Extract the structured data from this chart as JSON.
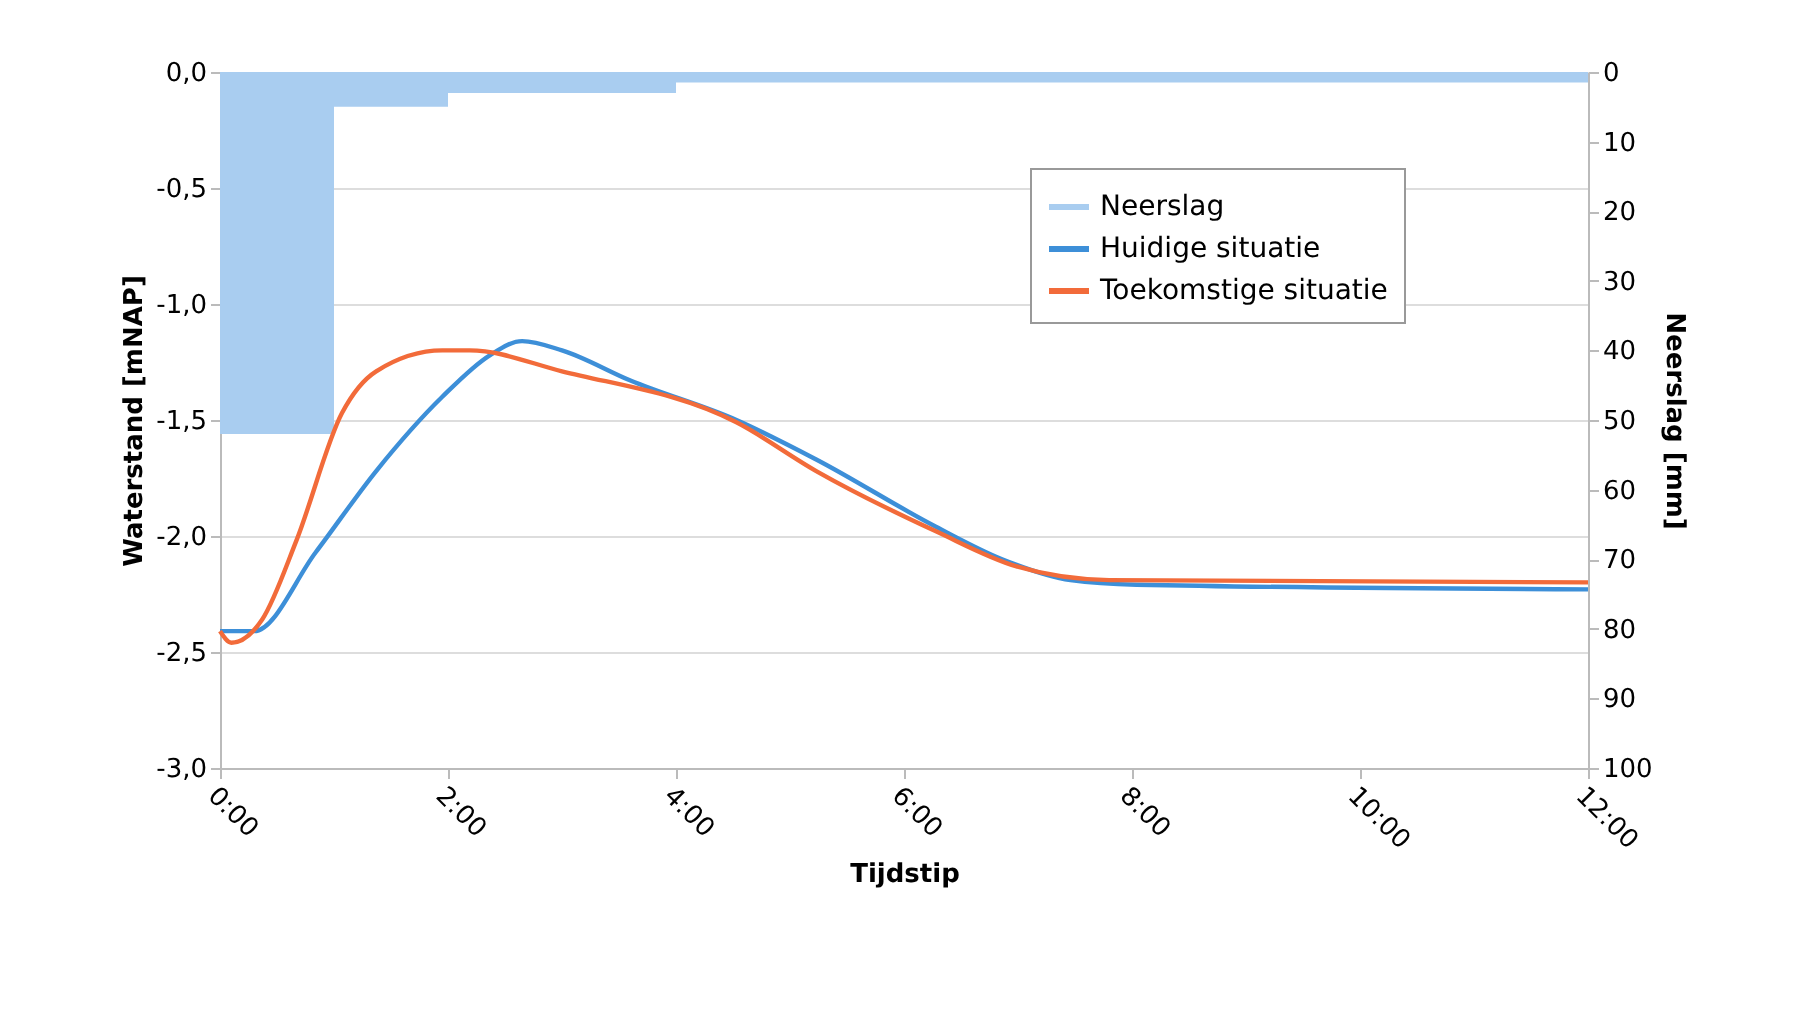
{
  "chart_data": {
    "type": "line",
    "xlabel": "Tijdstip",
    "ylabel": "Waterstand [mNAP]",
    "y2label": "Neerslag [mm]",
    "xlim": [
      0,
      12
    ],
    "xticks": [
      {
        "value": 0,
        "label": "0:00"
      },
      {
        "value": 2,
        "label": "2:00"
      },
      {
        "value": 4,
        "label": "4:00"
      },
      {
        "value": 6,
        "label": "6:00"
      },
      {
        "value": 8,
        "label": "8:00"
      },
      {
        "value": 10,
        "label": "10:00"
      },
      {
        "value": 12,
        "label": "12:00"
      }
    ],
    "ylim": [
      -3,
      0
    ],
    "yticks": [
      {
        "value": -3,
        "label": "-3,0"
      },
      {
        "value": -2.5,
        "label": "-2,5"
      },
      {
        "value": -2,
        "label": "-2,0"
      },
      {
        "value": -1.5,
        "label": "-1,5"
      },
      {
        "value": -1,
        "label": "-1,0"
      },
      {
        "value": -0.5,
        "label": "-0,5"
      },
      {
        "value": 0,
        "label": "0,0"
      }
    ],
    "y2lim": [
      100,
      0
    ],
    "y2ticks": [
      0,
      10,
      20,
      30,
      40,
      50,
      60,
      70,
      80,
      90,
      100
    ],
    "grid": "y",
    "legend": "top right",
    "series": [
      {
        "name": "Neerslag",
        "type": "histogram",
        "axis": "y2",
        "color": "#a9cdf0",
        "bins": [
          0,
          1,
          2,
          4,
          12
        ],
        "values": [
          52,
          5,
          3,
          1.5
        ]
      },
      {
        "name": "Huidige situatie",
        "color": "#3d8fd8",
        "x": [
          0,
          0.3,
          0.84,
          1.37,
          1.95,
          2.37,
          2.65,
          3.0,
          3.6,
          4.53,
          5.23,
          6.28,
          6.86,
          7.46,
          8.04,
          12
        ],
        "values": [
          -2.41,
          -2.41,
          -2.07,
          -1.72,
          -1.4,
          -1.22,
          -1.16,
          -1.2,
          -1.33,
          -1.5,
          -1.67,
          -1.96,
          -2.1,
          -2.19,
          -2.21,
          -2.23
        ]
      },
      {
        "name": "Toekomstige situatie",
        "color": "#f26b3a",
        "x": [
          0,
          0.1,
          0.37,
          0.67,
          1.07,
          1.37,
          1.95,
          2.19,
          3.0,
          4.53,
          5.23,
          6.28,
          6.98,
          7.8,
          12
        ],
        "values": [
          -2.41,
          -2.46,
          -2.36,
          -2.02,
          -1.47,
          -1.29,
          -1.2,
          -1.2,
          -1.29,
          -1.51,
          -1.72,
          -1.98,
          -2.13,
          -2.19,
          -2.2
        ]
      }
    ]
  }
}
